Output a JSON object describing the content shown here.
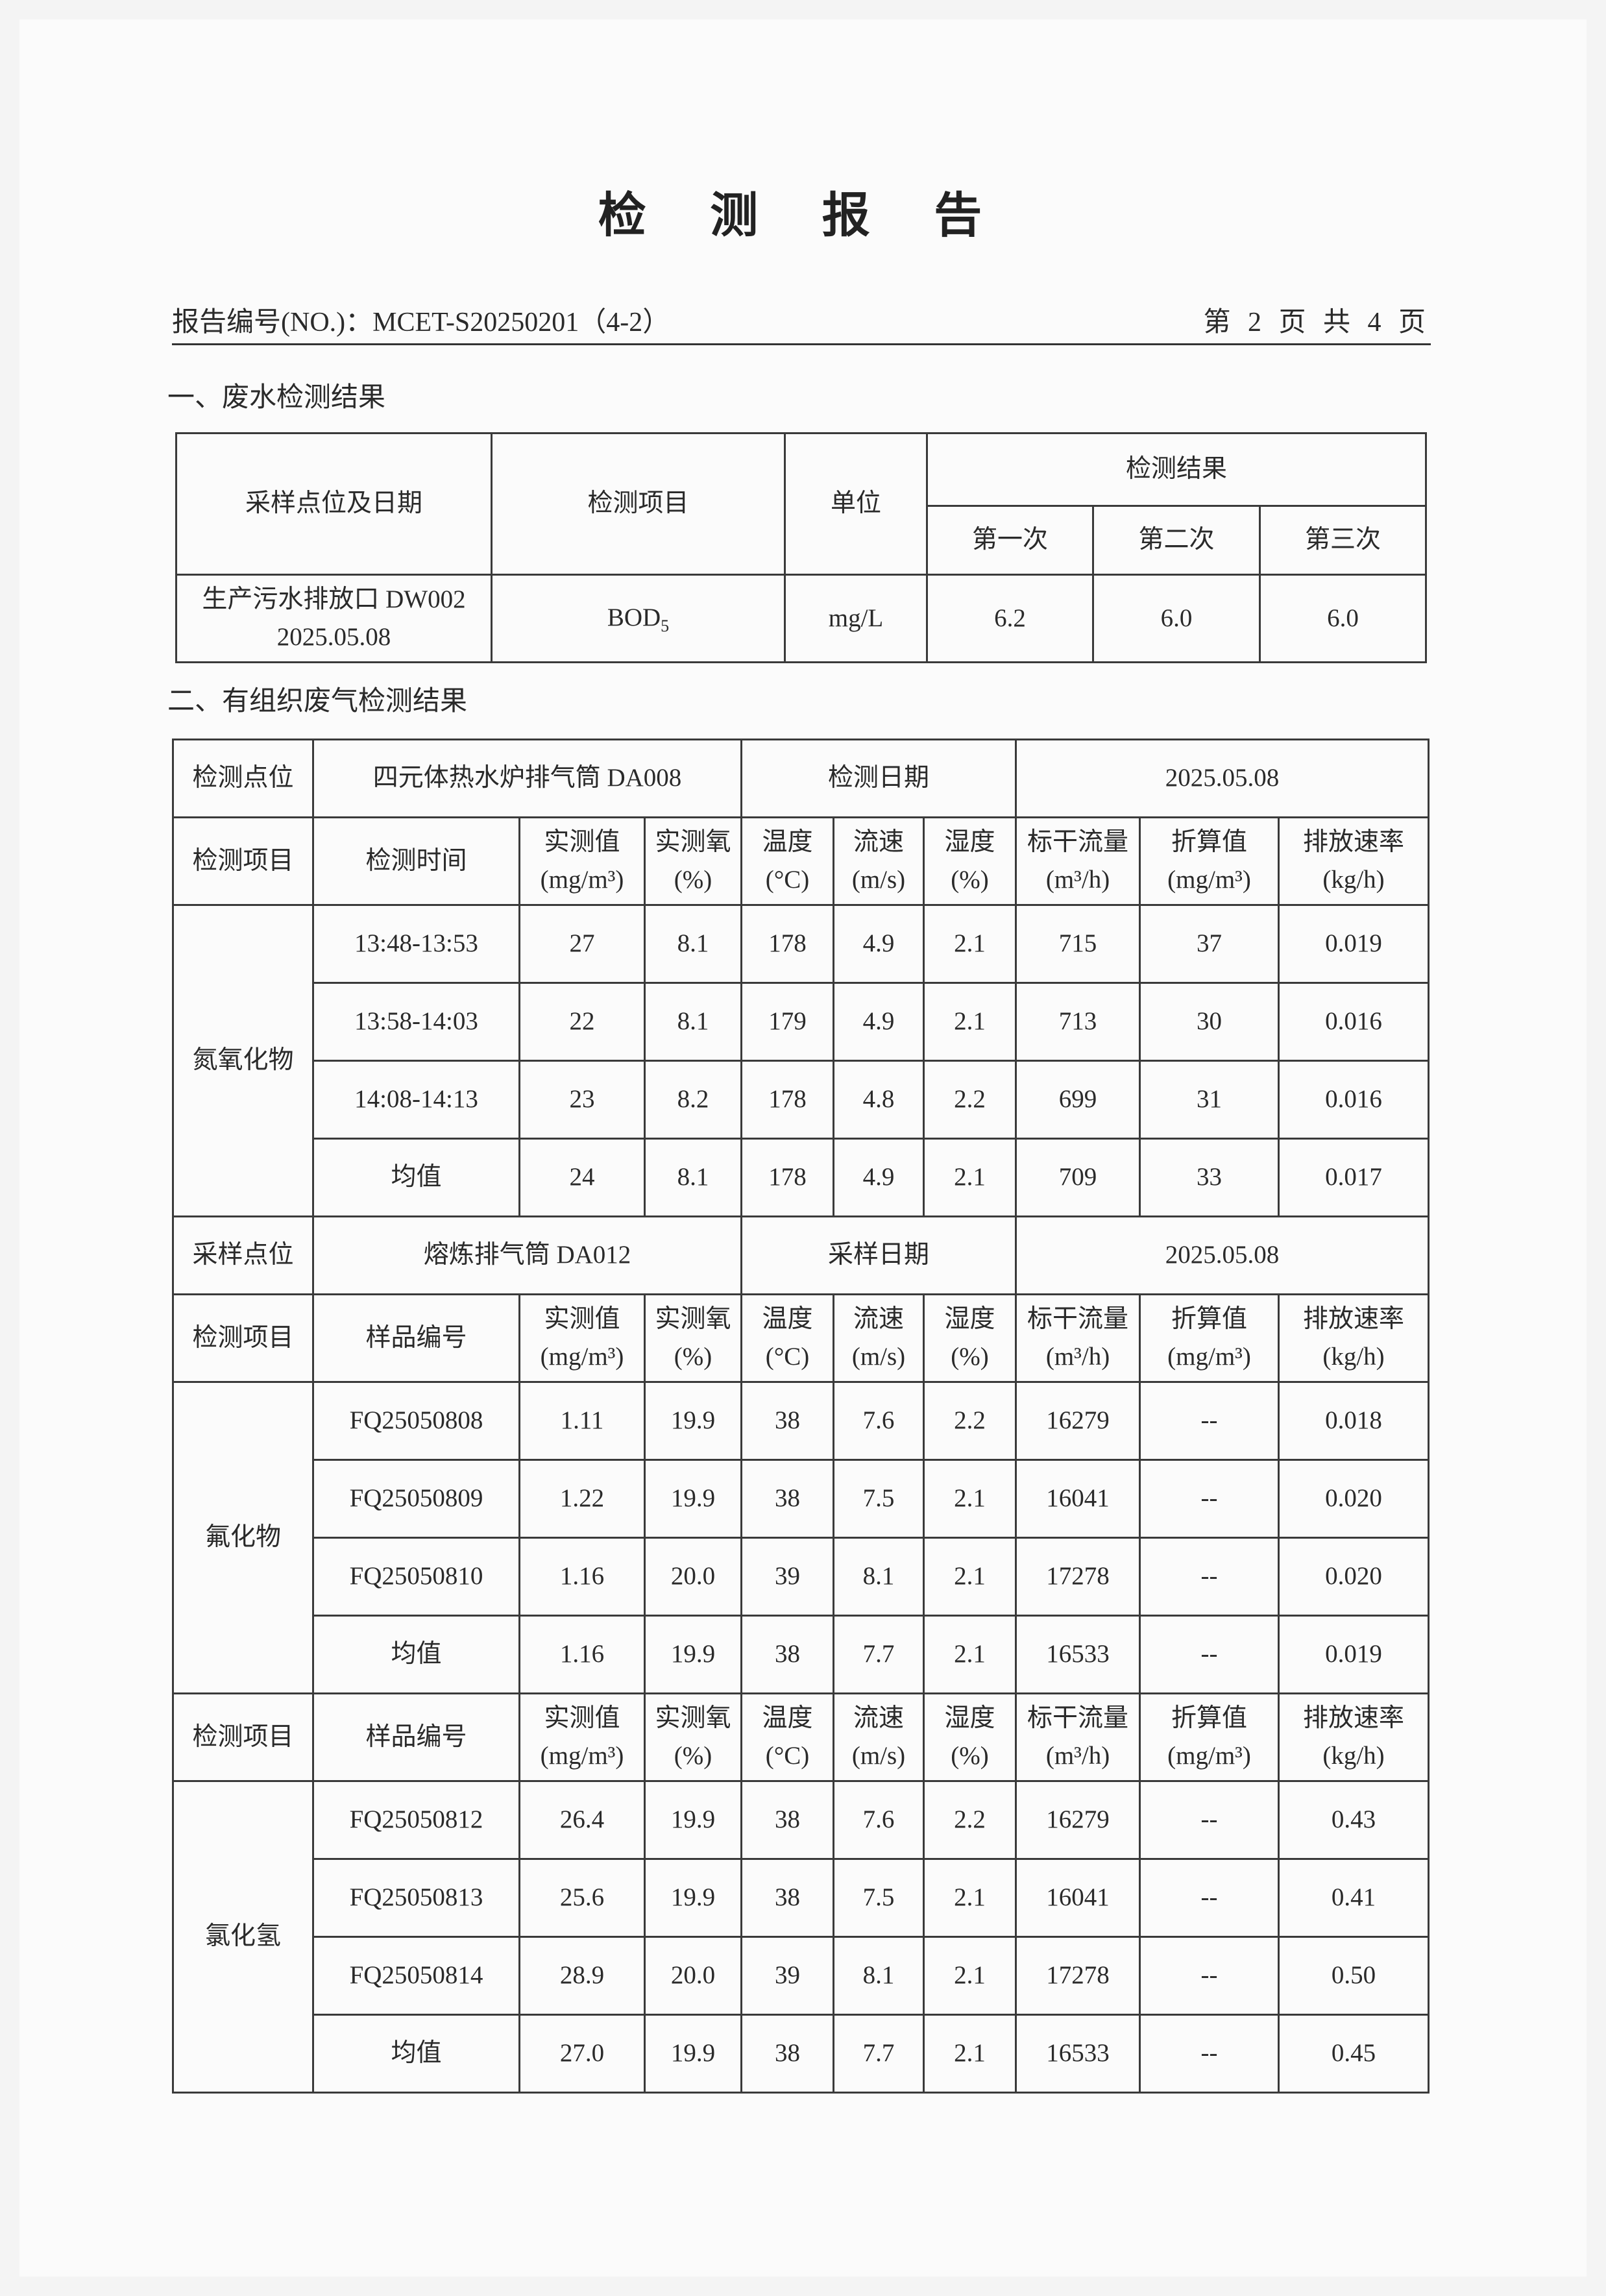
{
  "title": "检 测 报 告",
  "header": {
    "report_no": "报告编号(NO.)：MCET-S20250201（4-2）",
    "page_info": "第 2 页 共 4 页"
  },
  "section1": {
    "heading": "一、废水检测结果",
    "headers": {
      "location_date": "采样点位及日期",
      "item": "检测项目",
      "unit": "单位",
      "results": "检测结果",
      "first": "第一次",
      "second": "第二次",
      "third": "第三次"
    },
    "row": {
      "location": "生产污水排放口 DW002",
      "date": "2025.05.08",
      "item_main": "BOD",
      "item_sub": "5",
      "unit": "mg/L",
      "values": [
        "6.2",
        "6.0",
        "6.0"
      ]
    }
  },
  "section2": {
    "heading": "二、有组织废气检测结果",
    "blocks": [
      {
        "info": [
          "检测点位",
          "四元体热水炉排气筒 DA008",
          "检测日期",
          "2025.05.08"
        ],
        "columns": [
          "检测项目",
          "检测时间",
          "实测值\n(mg/m³)",
          "实测氧\n(%)",
          "温度\n(°C)",
          "流速\n(m/s)",
          "湿度\n(%)",
          "标干流量\n(m³/h)",
          "折算值\n(mg/m³)",
          "排放速率\n(kg/h)"
        ],
        "item": "氮氧化物",
        "rows": [
          [
            "13:48-13:53",
            "27",
            "8.1",
            "178",
            "4.9",
            "2.1",
            "715",
            "37",
            "0.019"
          ],
          [
            "13:58-14:03",
            "22",
            "8.1",
            "179",
            "4.9",
            "2.1",
            "713",
            "30",
            "0.016"
          ],
          [
            "14:08-14:13",
            "23",
            "8.2",
            "178",
            "4.8",
            "2.2",
            "699",
            "31",
            "0.016"
          ],
          [
            "均值",
            "24",
            "8.1",
            "178",
            "4.9",
            "2.1",
            "709",
            "33",
            "0.017"
          ]
        ]
      },
      {
        "info": [
          "采样点位",
          "熔炼排气筒 DA012",
          "采样日期",
          "2025.05.08"
        ],
        "columns": [
          "检测项目",
          "样品编号",
          "实测值\n(mg/m³)",
          "实测氧\n(%)",
          "温度\n(°C)",
          "流速\n(m/s)",
          "湿度\n(%)",
          "标干流量\n(m³/h)",
          "折算值\n(mg/m³)",
          "排放速率\n(kg/h)"
        ],
        "item": "氟化物",
        "rows": [
          [
            "FQ25050808",
            "1.11",
            "19.9",
            "38",
            "7.6",
            "2.2",
            "16279",
            "--",
            "0.018"
          ],
          [
            "FQ25050809",
            "1.22",
            "19.9",
            "38",
            "7.5",
            "2.1",
            "16041",
            "--",
            "0.020"
          ],
          [
            "FQ25050810",
            "1.16",
            "20.0",
            "39",
            "8.1",
            "2.1",
            "17278",
            "--",
            "0.020"
          ],
          [
            "均值",
            "1.16",
            "19.9",
            "38",
            "7.7",
            "2.1",
            "16533",
            "--",
            "0.019"
          ]
        ]
      },
      {
        "columns": [
          "检测项目",
          "样品编号",
          "实测值\n(mg/m³)",
          "实测氧\n(%)",
          "温度\n(°C)",
          "流速\n(m/s)",
          "湿度\n(%)",
          "标干流量\n(m³/h)",
          "折算值\n(mg/m³)",
          "排放速率\n(kg/h)"
        ],
        "item": "氯化氢",
        "rows": [
          [
            "FQ25050812",
            "26.4",
            "19.9",
            "38",
            "7.6",
            "2.2",
            "16279",
            "--",
            "0.43"
          ],
          [
            "FQ25050813",
            "25.6",
            "19.9",
            "38",
            "7.5",
            "2.1",
            "16041",
            "--",
            "0.41"
          ],
          [
            "FQ25050814",
            "28.9",
            "20.0",
            "39",
            "8.1",
            "2.1",
            "17278",
            "--",
            "0.50"
          ],
          [
            "均值",
            "27.0",
            "19.9",
            "38",
            "7.7",
            "2.1",
            "16533",
            "--",
            "0.45"
          ]
        ]
      }
    ]
  }
}
